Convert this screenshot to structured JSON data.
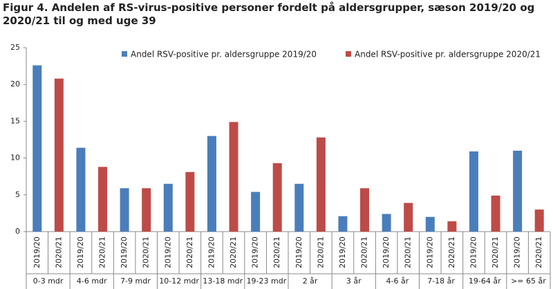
{
  "chart_data": {
    "type": "bar",
    "title": "Figur 4. Andelen af RS-virus-positive personer fordelt på aldersgrupper, sæson 2019/20 og 2020/21 til og med uge 39",
    "categories": [
      "0-3 mdr",
      "4-6 mdr",
      "7-9 mdr",
      "10-12 mdr",
      "13-18 mdr",
      "19-23 mdr",
      "2 år",
      "3 år",
      "4-6 år",
      "7-18 år",
      "19-64 år",
      ">= 65 år"
    ],
    "bar_labels": [
      "2019/20",
      "2020/21"
    ],
    "series": [
      {
        "name": "Andel RSV-positive pr. aldersgruppe 2019/20",
        "color": "#4a7ebb",
        "values": [
          22.6,
          11.4,
          5.9,
          6.5,
          13.0,
          5.4,
          6.5,
          2.1,
          2.4,
          2.0,
          10.9,
          11.0
        ]
      },
      {
        "name": "Andel RSV-positive pr. aldersgruppe 2020/21",
        "color": "#be4b48",
        "values": [
          20.8,
          8.8,
          5.9,
          8.1,
          14.9,
          9.3,
          12.8,
          5.9,
          3.9,
          1.4,
          4.9,
          3.0
        ]
      }
    ],
    "ylim": [
      0,
      25
    ],
    "yticks": [
      0,
      5,
      10,
      15,
      20,
      25
    ],
    "grid": false
  }
}
